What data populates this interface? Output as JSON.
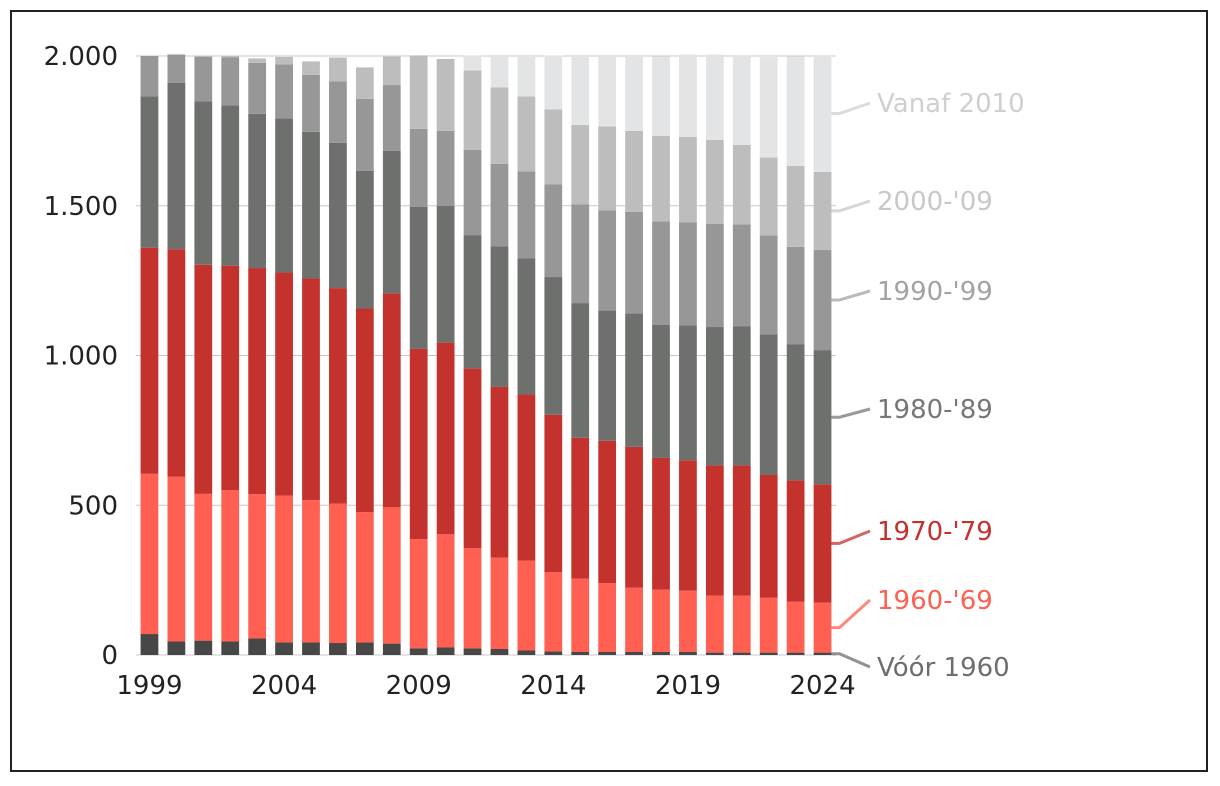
{
  "chart_data": {
    "type": "bar",
    "stacked": true,
    "categories": [
      "1999",
      "2000",
      "2001",
      "2002",
      "2003",
      "2004",
      "2005",
      "2006",
      "2007",
      "2008",
      "2009",
      "2010",
      "2011",
      "2012",
      "2013",
      "2014",
      "2015",
      "2016",
      "2017",
      "2018",
      "2019",
      "2020",
      "2021",
      "2022",
      "2023",
      "2024"
    ],
    "x_tick_labels": [
      "1999",
      "2004",
      "2009",
      "2014",
      "2019",
      "2024"
    ],
    "y_tick_labels": [
      "0",
      "500",
      "1.000",
      "1.500",
      "2.000"
    ],
    "y_ticks": [
      0,
      500,
      1000,
      1500,
      2000
    ],
    "ylim": [
      0,
      2000
    ],
    "grid": true,
    "legend_placement": "right, labels next to the last bar",
    "series": [
      {
        "name": "Vóór 1960",
        "color": "#474747",
        "label_color": "#6e6e6e",
        "values": [
          70,
          45,
          48,
          45,
          55,
          42,
          42,
          40,
          42,
          38,
          22,
          25,
          22,
          20,
          15,
          12,
          10,
          10,
          10,
          10,
          10,
          8,
          8,
          8,
          8,
          8
        ]
      },
      {
        "name": "1960-'69",
        "color": "#ff6051",
        "label_color": "#ff6051",
        "values": [
          535,
          550,
          490,
          505,
          482,
          490,
          475,
          465,
          435,
          455,
          365,
          378,
          335,
          305,
          300,
          265,
          245,
          230,
          215,
          208,
          205,
          190,
          190,
          183,
          170,
          167
        ]
      },
      {
        "name": "1970-'79",
        "color": "#c4322e",
        "label_color": "#c4322e",
        "values": [
          755,
          760,
          765,
          750,
          755,
          745,
          740,
          720,
          680,
          715,
          635,
          640,
          600,
          570,
          555,
          525,
          470,
          475,
          470,
          440,
          435,
          435,
          435,
          410,
          405,
          395
        ]
      },
      {
        "name": "1980-'89",
        "color": "#6e706e",
        "label_color": "#777777",
        "values": [
          505,
          555,
          545,
          535,
          515,
          515,
          490,
          485,
          460,
          475,
          475,
          457,
          445,
          470,
          455,
          460,
          450,
          435,
          445,
          445,
          450,
          462,
          465,
          470,
          455,
          448
        ]
      },
      {
        "name": "1990-'99",
        "color": "#979797",
        "label_color": "#a3a3a3",
        "values": [
          135,
          95,
          150,
          160,
          170,
          180,
          190,
          205,
          240,
          220,
          260,
          250,
          285,
          275,
          290,
          310,
          330,
          335,
          340,
          345,
          345,
          345,
          340,
          330,
          325,
          335
        ]
      },
      {
        "name": "2000-'09",
        "color": "#bdbdbd",
        "label_color": "#c8c8c8",
        "values": [
          0,
          0,
          0,
          5,
          15,
          25,
          45,
          80,
          105,
          95,
          245,
          240,
          265,
          255,
          250,
          250,
          265,
          280,
          270,
          285,
          285,
          280,
          265,
          260,
          270,
          260
        ]
      },
      {
        "name": "Vanaf 2010",
        "color": "#e3e4e6",
        "label_color": "#cfcfcf",
        "values": [
          0,
          0,
          0,
          0,
          0,
          0,
          0,
          0,
          0,
          0,
          0,
          0,
          50,
          105,
          135,
          180,
          230,
          235,
          250,
          265,
          275,
          285,
          300,
          335,
          365,
          390
        ]
      }
    ]
  }
}
